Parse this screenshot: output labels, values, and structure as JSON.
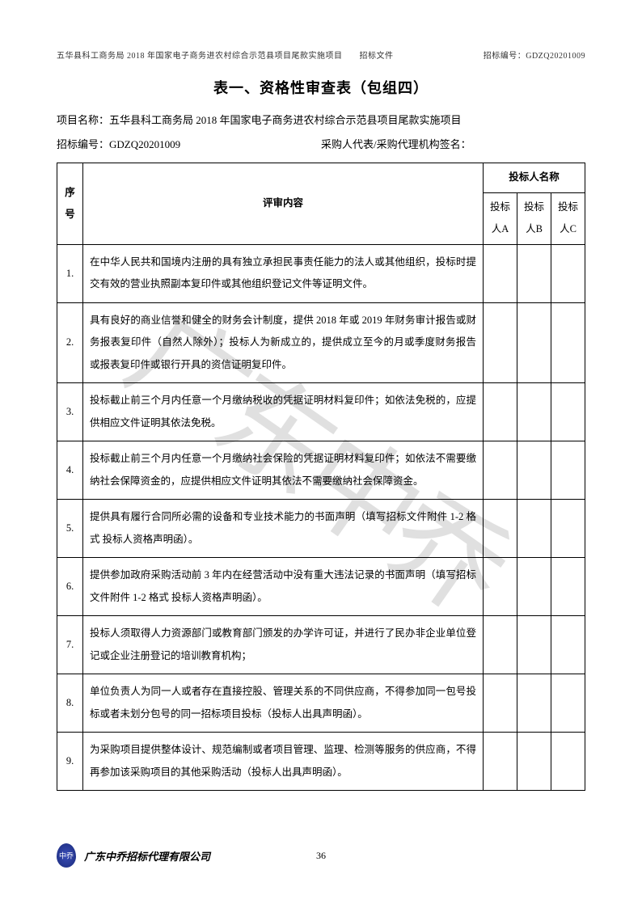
{
  "header": {
    "left": "五华县科工商务局 2018 年国家电子商务进农村综合示范县项目尾款实施项目　　招标文件",
    "right": "招标编号：GDZQ20201009"
  },
  "title": "表一、资格性审查表（包组四）",
  "project_name_label": "项目名称：",
  "project_name": "五华县科工商务局 2018 年国家电子商务进农村综合示范县项目尾款实施项目",
  "tender_no_label": "招标编号：",
  "tender_no": "GDZQ20201009",
  "signer_label": "采购人代表/采购代理机构签名：",
  "table_headers": {
    "seq": "序号",
    "content": "评审内容",
    "bidder_group": "投标人名称",
    "bidder_a": "投标人A",
    "bidder_b": "投标人B",
    "bidder_c": "投标人C"
  },
  "rows": [
    {
      "seq": "1.",
      "content": "在中华人民共和国境内注册的具有独立承担民事责任能力的法人或其他组织，投标时提交有效的营业执照副本复印件或其他组织登记文件等证明文件。"
    },
    {
      "seq": "2.",
      "content": "具有良好的商业信誉和健全的财务会计制度，提供 2018 年或 2019 年财务审计报告或财务报表复印件（自然人除外）；投标人为新成立的，提供成立至今的月或季度财务报告或报表复印件或银行开具的资信证明复印件。"
    },
    {
      "seq": "3.",
      "content": "投标截止前三个月内任意一个月缴纳税收的凭据证明材料复印件；如依法免税的，应提供相应文件证明其依法免税。"
    },
    {
      "seq": "4.",
      "content": "投标截止前三个月内任意一个月缴纳社会保险的凭据证明材料复印件；如依法不需要缴纳社会保障资金的，应提供相应文件证明其依法不需要缴纳社会保障资金。"
    },
    {
      "seq": "5.",
      "content": "提供具有履行合同所必需的设备和专业技术能力的书面声明（填写招标文件附件 1-2 格式 投标人资格声明函）。"
    },
    {
      "seq": "6.",
      "content": "提供参加政府采购活动前 3 年内在经营活动中没有重大违法记录的书面声明（填写招标文件附件 1-2 格式 投标人资格声明函）。"
    },
    {
      "seq": "7.",
      "content": "投标人须取得人力资源部门或教育部门颁发的办学许可证，并进行了民办非企业单位登记或企业注册登记的培训教育机构；"
    },
    {
      "seq": "8.",
      "content": "单位负责人为同一人或者存在直接控股、管理关系的不同供应商，不得参加同一包号投标或者未划分包号的同一招标项目投标（投标人出具声明函）。"
    },
    {
      "seq": "9.",
      "content": "为采购项目提供整体设计、规范编制或者项目管理、监理、检测等服务的供应商，不得再参加该采购项目的其他采购活动（投标人出具声明函）。"
    }
  ],
  "footer": {
    "company": "广东中乔招标代理有限公司",
    "page": "36"
  },
  "watermark": "广东中乔"
}
